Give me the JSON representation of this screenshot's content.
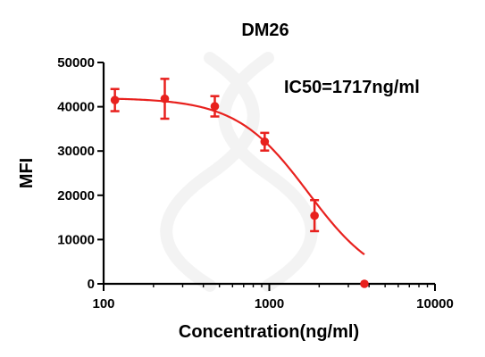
{
  "chart_data": {
    "type": "scatter",
    "title": "DM26",
    "xlabel": "Concentration(ng/ml)",
    "ylabel": "MFI",
    "xscale": "log",
    "xlim": [
      100,
      10000
    ],
    "ylim": [
      0,
      50000
    ],
    "xticks": [
      100,
      1000,
      10000
    ],
    "xtick_labels": [
      "100",
      "1000",
      "10000"
    ],
    "yticks": [
      0,
      10000,
      20000,
      30000,
      40000,
      50000
    ],
    "ytick_labels": [
      "0",
      "10000",
      "20000",
      "30000",
      "40000",
      "50000"
    ],
    "annotation": "IC50=1717ng/ml",
    "grid": false,
    "color": "#e8211e",
    "points": [
      {
        "x": 117,
        "y": 41500,
        "err": 2500
      },
      {
        "x": 234,
        "y": 41800,
        "err": 4500
      },
      {
        "x": 469,
        "y": 40100,
        "err": 2300
      },
      {
        "x": 938,
        "y": 32100,
        "err": 2000
      },
      {
        "x": 1875,
        "y": 15400,
        "err": 3500
      },
      {
        "x": 3750,
        "y": 0,
        "err": 0
      }
    ],
    "fit": {
      "type": "four-parameter logistic",
      "top": 42000,
      "bottom": -800,
      "ic50": 1717,
      "hill": 2.0
    }
  }
}
